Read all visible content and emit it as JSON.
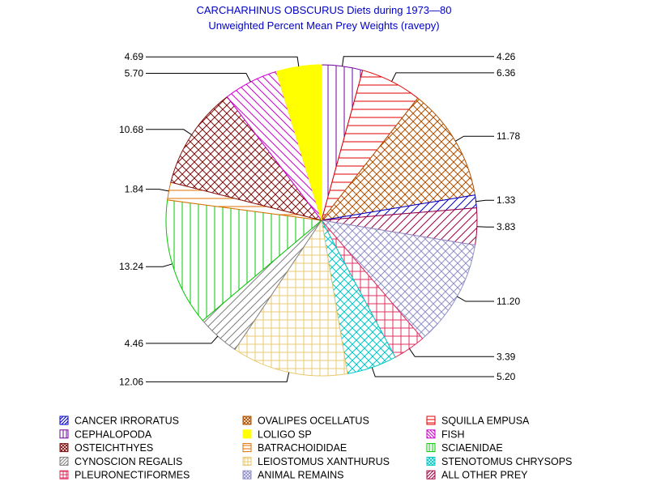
{
  "chart_data": {
    "type": "pie",
    "title": "CARCHARHINUS OBSCURUS Diets during 1973—80",
    "subtitle": "Unweighted Percent Mean Prey Weights (ravepy)",
    "legend_position": "bottom",
    "slices": [
      {
        "name": "CEPHALOPODA",
        "value": 4.26,
        "label": "4.26",
        "color": "#7000a0",
        "pattern": "vertical"
      },
      {
        "name": "SQUILLA EMPUSA",
        "value": 6.36,
        "label": "6.36",
        "color": "#e00000",
        "pattern": "horizontal"
      },
      {
        "name": "OVALIPES OCELLATUS",
        "value": 11.78,
        "label": "11.78",
        "color": "#b05000",
        "pattern": "crosshatch"
      },
      {
        "name": "CANCER IRRORATUS",
        "value": 1.33,
        "label": "1.33",
        "color": "#0000c8",
        "pattern": "diag-up"
      },
      {
        "name": "ALL OTHER PREY",
        "value": 3.83,
        "label": "3.83",
        "color": "#a00040",
        "pattern": "diag-up"
      },
      {
        "name": "ANIMAL REMAINS",
        "value": 11.2,
        "label": "11.20",
        "color": "#9090c8",
        "pattern": "crosshatch"
      },
      {
        "name": "PLEURONECTIFORMES",
        "value": 3.39,
        "label": "3.39",
        "color": "#e03060",
        "pattern": "grid"
      },
      {
        "name": "STENOTOMUS CHRYSOPS",
        "value": 5.2,
        "label": "5.20",
        "color": "#00c8c8",
        "pattern": "crosshatch"
      },
      {
        "name": "LEIOSTOMUS XANTHURUS",
        "value": 12.06,
        "label": "12.06",
        "color": "#e8c870",
        "pattern": "grid"
      },
      {
        "name": "CYNOSCION REGALIS",
        "value": 4.46,
        "label": "4.46",
        "color": "#808080",
        "pattern": "diag-up"
      },
      {
        "name": "SCIAENIDAE",
        "value": 13.24,
        "label": "13.24",
        "color": "#00c800",
        "pattern": "vertical"
      },
      {
        "name": "BATRACHOIDIDAE",
        "value": 1.84,
        "label": "1.84",
        "color": "#e07000",
        "pattern": "horizontal"
      },
      {
        "name": "OSTEICHTHYES",
        "value": 10.68,
        "label": "10.68",
        "color": "#801010",
        "pattern": "crosshatch"
      },
      {
        "name": "FISH",
        "value": 5.7,
        "label": "5.70",
        "color": "#d000d0",
        "pattern": "diag-down"
      },
      {
        "name": "LOLIGO SP",
        "value": 4.69,
        "label": "4.69",
        "color": "#ffff00",
        "pattern": "solid"
      }
    ],
    "legend": [
      {
        "name": "CANCER IRRORATUS",
        "color": "#0000c8",
        "pattern": "diag-up"
      },
      {
        "name": "OVALIPES OCELLATUS",
        "color": "#b05000",
        "pattern": "crosshatch"
      },
      {
        "name": "SQUILLA EMPUSA",
        "color": "#e00000",
        "pattern": "horizontal"
      },
      {
        "name": "CEPHALOPODA",
        "color": "#7000a0",
        "pattern": "vertical"
      },
      {
        "name": "LOLIGO SP",
        "color": "#ffff00",
        "pattern": "solid"
      },
      {
        "name": "FISH",
        "color": "#d000d0",
        "pattern": "diag-down"
      },
      {
        "name": "OSTEICHTHYES",
        "color": "#801010",
        "pattern": "crosshatch"
      },
      {
        "name": "BATRACHOIDIDAE",
        "color": "#e07000",
        "pattern": "horizontal"
      },
      {
        "name": "SCIAENIDAE",
        "color": "#00c800",
        "pattern": "vertical"
      },
      {
        "name": "CYNOSCION REGALIS",
        "color": "#808080",
        "pattern": "diag-up"
      },
      {
        "name": "LEIOSTOMUS XANTHURUS",
        "color": "#e8c870",
        "pattern": "grid"
      },
      {
        "name": "STENOTOMUS CHRYSOPS",
        "color": "#00c8c8",
        "pattern": "crosshatch"
      },
      {
        "name": "PLEURONECTIFORMES",
        "color": "#e03060",
        "pattern": "grid"
      },
      {
        "name": "ANIMAL REMAINS",
        "color": "#9090c8",
        "pattern": "crosshatch"
      },
      {
        "name": "ALL OTHER PREY",
        "color": "#a00040",
        "pattern": "diag-up"
      }
    ]
  }
}
